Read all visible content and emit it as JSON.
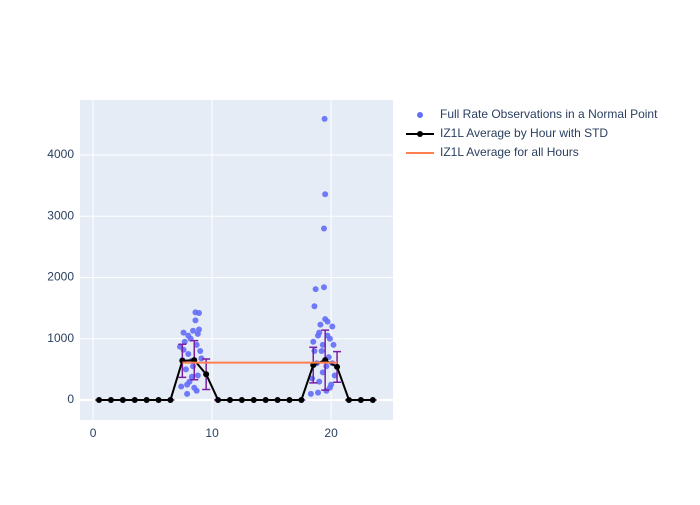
{
  "chart_data": {
    "type": "scatter-line",
    "xlim": [
      -1.1,
      25.2
    ],
    "ylim": [
      -327,
      4898
    ],
    "xticks": [
      0,
      10,
      20
    ],
    "yticks": [
      0,
      1000,
      2000,
      3000,
      4000
    ],
    "grid": true,
    "legend": "right",
    "series": [
      {
        "name": "Full Rate Observations in a Normal Point",
        "kind": "markers",
        "color": "#636efa",
        "x": [
          7.3,
          7.4,
          7.6,
          7.7,
          7.8,
          7.9,
          8.0,
          8.1,
          8.2,
          8.3,
          8.4,
          8.5,
          8.6,
          8.6,
          8.7,
          8.8,
          8.9,
          8.9,
          9.0,
          8.0,
          7.5,
          8.3,
          8.7,
          9.1,
          7.9,
          8.4,
          8.8,
          7.6,
          18.3,
          18.5,
          18.6,
          18.7,
          18.8,
          18.9,
          19.0,
          19.1,
          19.2,
          19.3,
          19.4,
          19.4,
          19.5,
          19.45,
          19.5,
          19.6,
          19.7,
          19.8,
          19.9,
          20.0,
          20.1,
          20.2,
          20.3,
          18.4,
          18.6,
          19.0,
          19.3,
          19.6,
          19.9,
          20.1,
          18.9,
          19.7
        ],
        "values": [
          870,
          220,
          1100,
          950,
          500,
          100,
          750,
          300,
          1000,
          640,
          1130,
          200,
          1300,
          1430,
          900,
          400,
          1420,
          1150,
          800,
          1050,
          650,
          380,
          150,
          680,
          250,
          550,
          1080,
          820,
          100,
          950,
          1530,
          1810,
          600,
          1050,
          300,
          1230,
          800,
          450,
          1840,
          2800,
          3360,
          4590,
          1320,
          150,
          1280,
          700,
          1000,
          250,
          1200,
          900,
          400,
          350,
          800,
          1100,
          900,
          550,
          200,
          600,
          120,
          1050
        ]
      },
      {
        "name": "IZ1L Average by Hour with STD",
        "kind": "lines+markers",
        "color": "#000000",
        "error_color": "#7b1fa2",
        "x": [
          0.5,
          1.5,
          2.5,
          3.5,
          4.5,
          5.5,
          6.5,
          7.5,
          8.5,
          9.5,
          10.5,
          11.5,
          12.5,
          13.5,
          14.5,
          15.5,
          16.5,
          17.5,
          18.5,
          19.5,
          20.5,
          21.5,
          22.5,
          23.5
        ],
        "values": [
          0,
          0,
          0,
          0,
          0,
          0,
          0,
          640,
          650,
          420,
          0,
          0,
          0,
          0,
          0,
          0,
          0,
          0,
          570,
          650,
          540,
          0,
          0,
          0
        ],
        "errors": [
          0,
          0,
          0,
          0,
          0,
          0,
          0,
          270,
          320,
          250,
          0,
          0,
          0,
          0,
          0,
          0,
          0,
          0,
          290,
          490,
          250,
          0,
          0,
          0
        ]
      },
      {
        "name": "IZ1L Average for all Hours",
        "kind": "lines",
        "color": "#ff7f50",
        "x": [
          7.5,
          20.5
        ],
        "values": [
          610,
          610
        ]
      }
    ]
  }
}
